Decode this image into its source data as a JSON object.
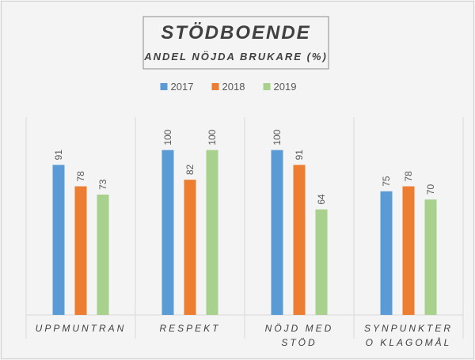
{
  "chart_data": {
    "type": "bar",
    "title": "STÖDBOENDE",
    "subtitle": "ANDEL NÖJDA BRUKARE (%)",
    "categories": [
      "UPPMUNTRAN",
      "RESPEKT",
      "NÖJD MED STÖD",
      "SYNPUNKTER O KLAGOMÅL"
    ],
    "series": [
      {
        "name": "2017",
        "color": "#5b9bd5",
        "values": [
          91,
          100,
          100,
          75
        ]
      },
      {
        "name": "2018",
        "color": "#ed7d31",
        "values": [
          78,
          82,
          91,
          78
        ]
      },
      {
        "name": "2019",
        "color": "#a9d18e",
        "values": [
          73,
          100,
          64,
          70
        ]
      }
    ],
    "ylim": [
      0,
      120
    ],
    "legend": "top"
  }
}
